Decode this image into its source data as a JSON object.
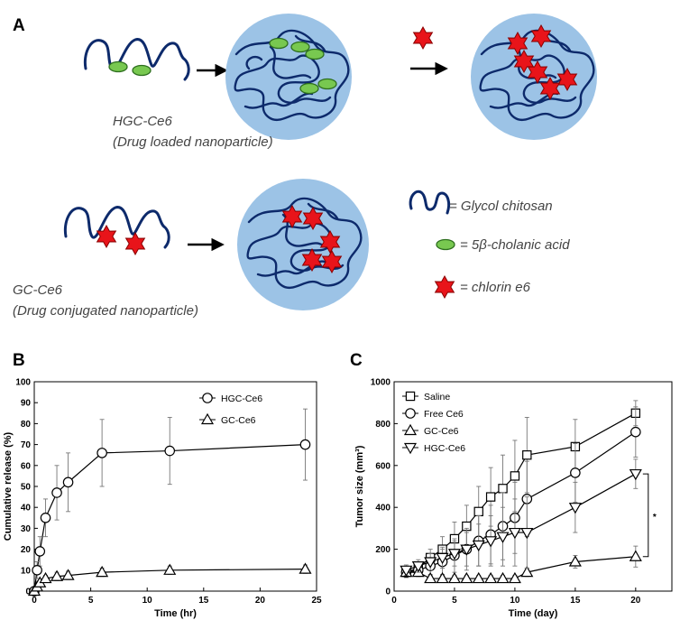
{
  "panels": {
    "a": {
      "letter": "A"
    },
    "b": {
      "letter": "B"
    },
    "c": {
      "letter": "C"
    }
  },
  "schematic": {
    "hgc_name": "HGC-Ce6",
    "hgc_desc": "(Drug loaded nanoparticle)",
    "gc_name": "GC-Ce6",
    "gc_desc": "(Drug conjugated nanoparticle)",
    "legend": {
      "chitosan": "= Glycol chitosan",
      "bile": "= 5β-cholanic acid",
      "ce6": "= chlorin e6"
    },
    "colors": {
      "particle": "#9cc3e6",
      "chain": "#0d2a6b",
      "bile_acid": "#78c850",
      "ce6": "#e8141a"
    }
  },
  "chart_data": [
    {
      "panel": "B",
      "type": "line",
      "title": "",
      "xlabel": "Time (hr)",
      "ylabel": "Cumulative release (%)",
      "xlim": [
        0,
        25
      ],
      "ylim": [
        0,
        100
      ],
      "xticks": [
        0,
        5,
        10,
        15,
        20,
        25
      ],
      "yticks": [
        0,
        10,
        20,
        30,
        40,
        50,
        60,
        70,
        80,
        90,
        100
      ],
      "legend_position": "top-right",
      "series": [
        {
          "name": "HGC-Ce6",
          "marker": "circle",
          "x": [
            0,
            0.25,
            0.5,
            1,
            2,
            3,
            6,
            12,
            24
          ],
          "y": [
            0,
            10,
            19,
            35,
            47,
            52,
            66,
            67,
            70
          ],
          "err": [
            0,
            4,
            7,
            9,
            13,
            14,
            16,
            16,
            17
          ]
        },
        {
          "name": "GC-Ce6",
          "marker": "triangle-up",
          "x": [
            0,
            0.25,
            0.5,
            1,
            2,
            3,
            6,
            12,
            24
          ],
          "y": [
            0,
            2,
            4,
            6,
            7,
            7.5,
            9,
            10,
            10.5
          ],
          "err": [
            0,
            1,
            1,
            1.5,
            2,
            2,
            2,
            2,
            2
          ]
        }
      ]
    },
    {
      "panel": "C",
      "type": "line",
      "title": "",
      "xlabel": "Time (day)",
      "ylabel": "Tumor size (mm³)",
      "xlim": [
        0,
        23
      ],
      "ylim": [
        0,
        1000
      ],
      "xticks": [
        0,
        5,
        10,
        15,
        20
      ],
      "yticks": [
        0,
        200,
        400,
        600,
        800,
        1000
      ],
      "legend_position": "top-left",
      "significance": "*",
      "series": [
        {
          "name": "Saline",
          "marker": "square",
          "x": [
            1,
            2,
            3,
            4,
            5,
            6,
            7,
            8,
            9,
            10,
            11,
            15,
            20
          ],
          "y": [
            90,
            110,
            160,
            200,
            250,
            310,
            380,
            450,
            490,
            550,
            650,
            690,
            850
          ],
          "err": [
            25,
            30,
            40,
            60,
            80,
            100,
            120,
            140,
            160,
            170,
            180,
            130,
            60
          ]
        },
        {
          "name": "Free Ce6",
          "marker": "circle",
          "x": [
            1,
            2,
            3,
            4,
            5,
            6,
            7,
            8,
            9,
            10,
            11,
            15,
            20
          ],
          "y": [
            90,
            100,
            120,
            140,
            170,
            200,
            240,
            270,
            310,
            350,
            440,
            565,
            760
          ],
          "err": [
            25,
            30,
            40,
            60,
            80,
            100,
            120,
            140,
            160,
            170,
            180,
            140,
            120
          ]
        },
        {
          "name": "GC-Ce6",
          "marker": "triangle-up",
          "x": [
            1,
            2,
            3,
            4,
            5,
            6,
            7,
            8,
            9,
            10,
            11,
            15,
            20
          ],
          "y": [
            90,
            90,
            60,
            60,
            60,
            60,
            60,
            60,
            60,
            60,
            90,
            140,
            165
          ],
          "err": [
            15,
            20,
            15,
            15,
            15,
            15,
            15,
            15,
            15,
            15,
            20,
            30,
            50
          ]
        },
        {
          "name": "HGC-Ce6",
          "marker": "triangle-down",
          "x": [
            1,
            2,
            3,
            4,
            5,
            6,
            7,
            8,
            9,
            10,
            11,
            15,
            20
          ],
          "y": [
            100,
            120,
            140,
            160,
            180,
            200,
            220,
            240,
            260,
            280,
            280,
            400,
            560
          ],
          "err": [
            25,
            30,
            40,
            50,
            60,
            80,
            100,
            120,
            140,
            160,
            170,
            120,
            70
          ]
        }
      ]
    }
  ]
}
